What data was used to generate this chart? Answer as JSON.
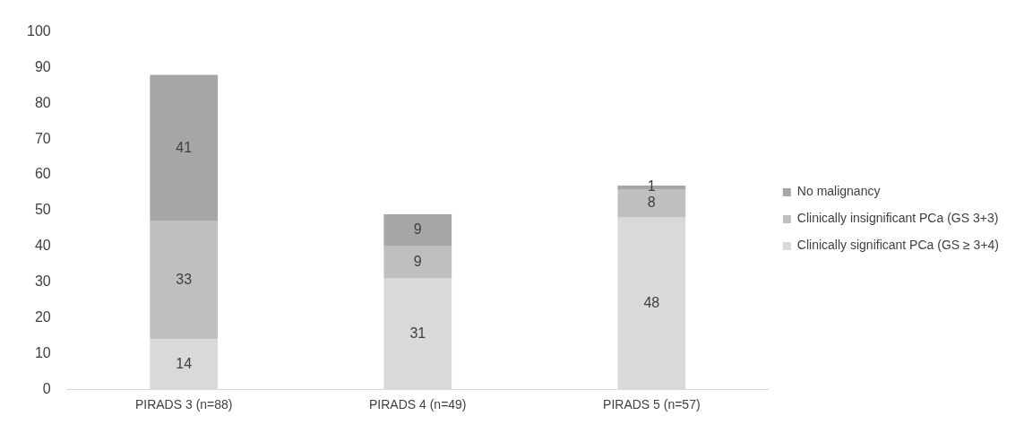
{
  "chart_data": {
    "type": "bar",
    "stacked": true,
    "categories": [
      "PIRADS 3 (n=88)",
      "PIRADS 4 (n=49)",
      "PIRADS 5 (n=57)"
    ],
    "series": [
      {
        "name": "Clinically significant PCa (GS ≥ 3+4)",
        "color": "#d9d9d9",
        "values": [
          14,
          31,
          48
        ]
      },
      {
        "name": "Clinically insignificant PCa (GS 3+3)",
        "color": "#bfbfbf",
        "values": [
          33,
          9,
          8
        ]
      },
      {
        "name": "No malignancy",
        "color": "#a6a6a6",
        "values": [
          41,
          9,
          1
        ]
      }
    ],
    "ylim": [
      0,
      100
    ],
    "yticks": [
      0,
      10,
      20,
      30,
      40,
      50,
      60,
      70,
      80,
      90,
      100
    ],
    "grid": false,
    "legend": "right",
    "data_labels": true
  }
}
